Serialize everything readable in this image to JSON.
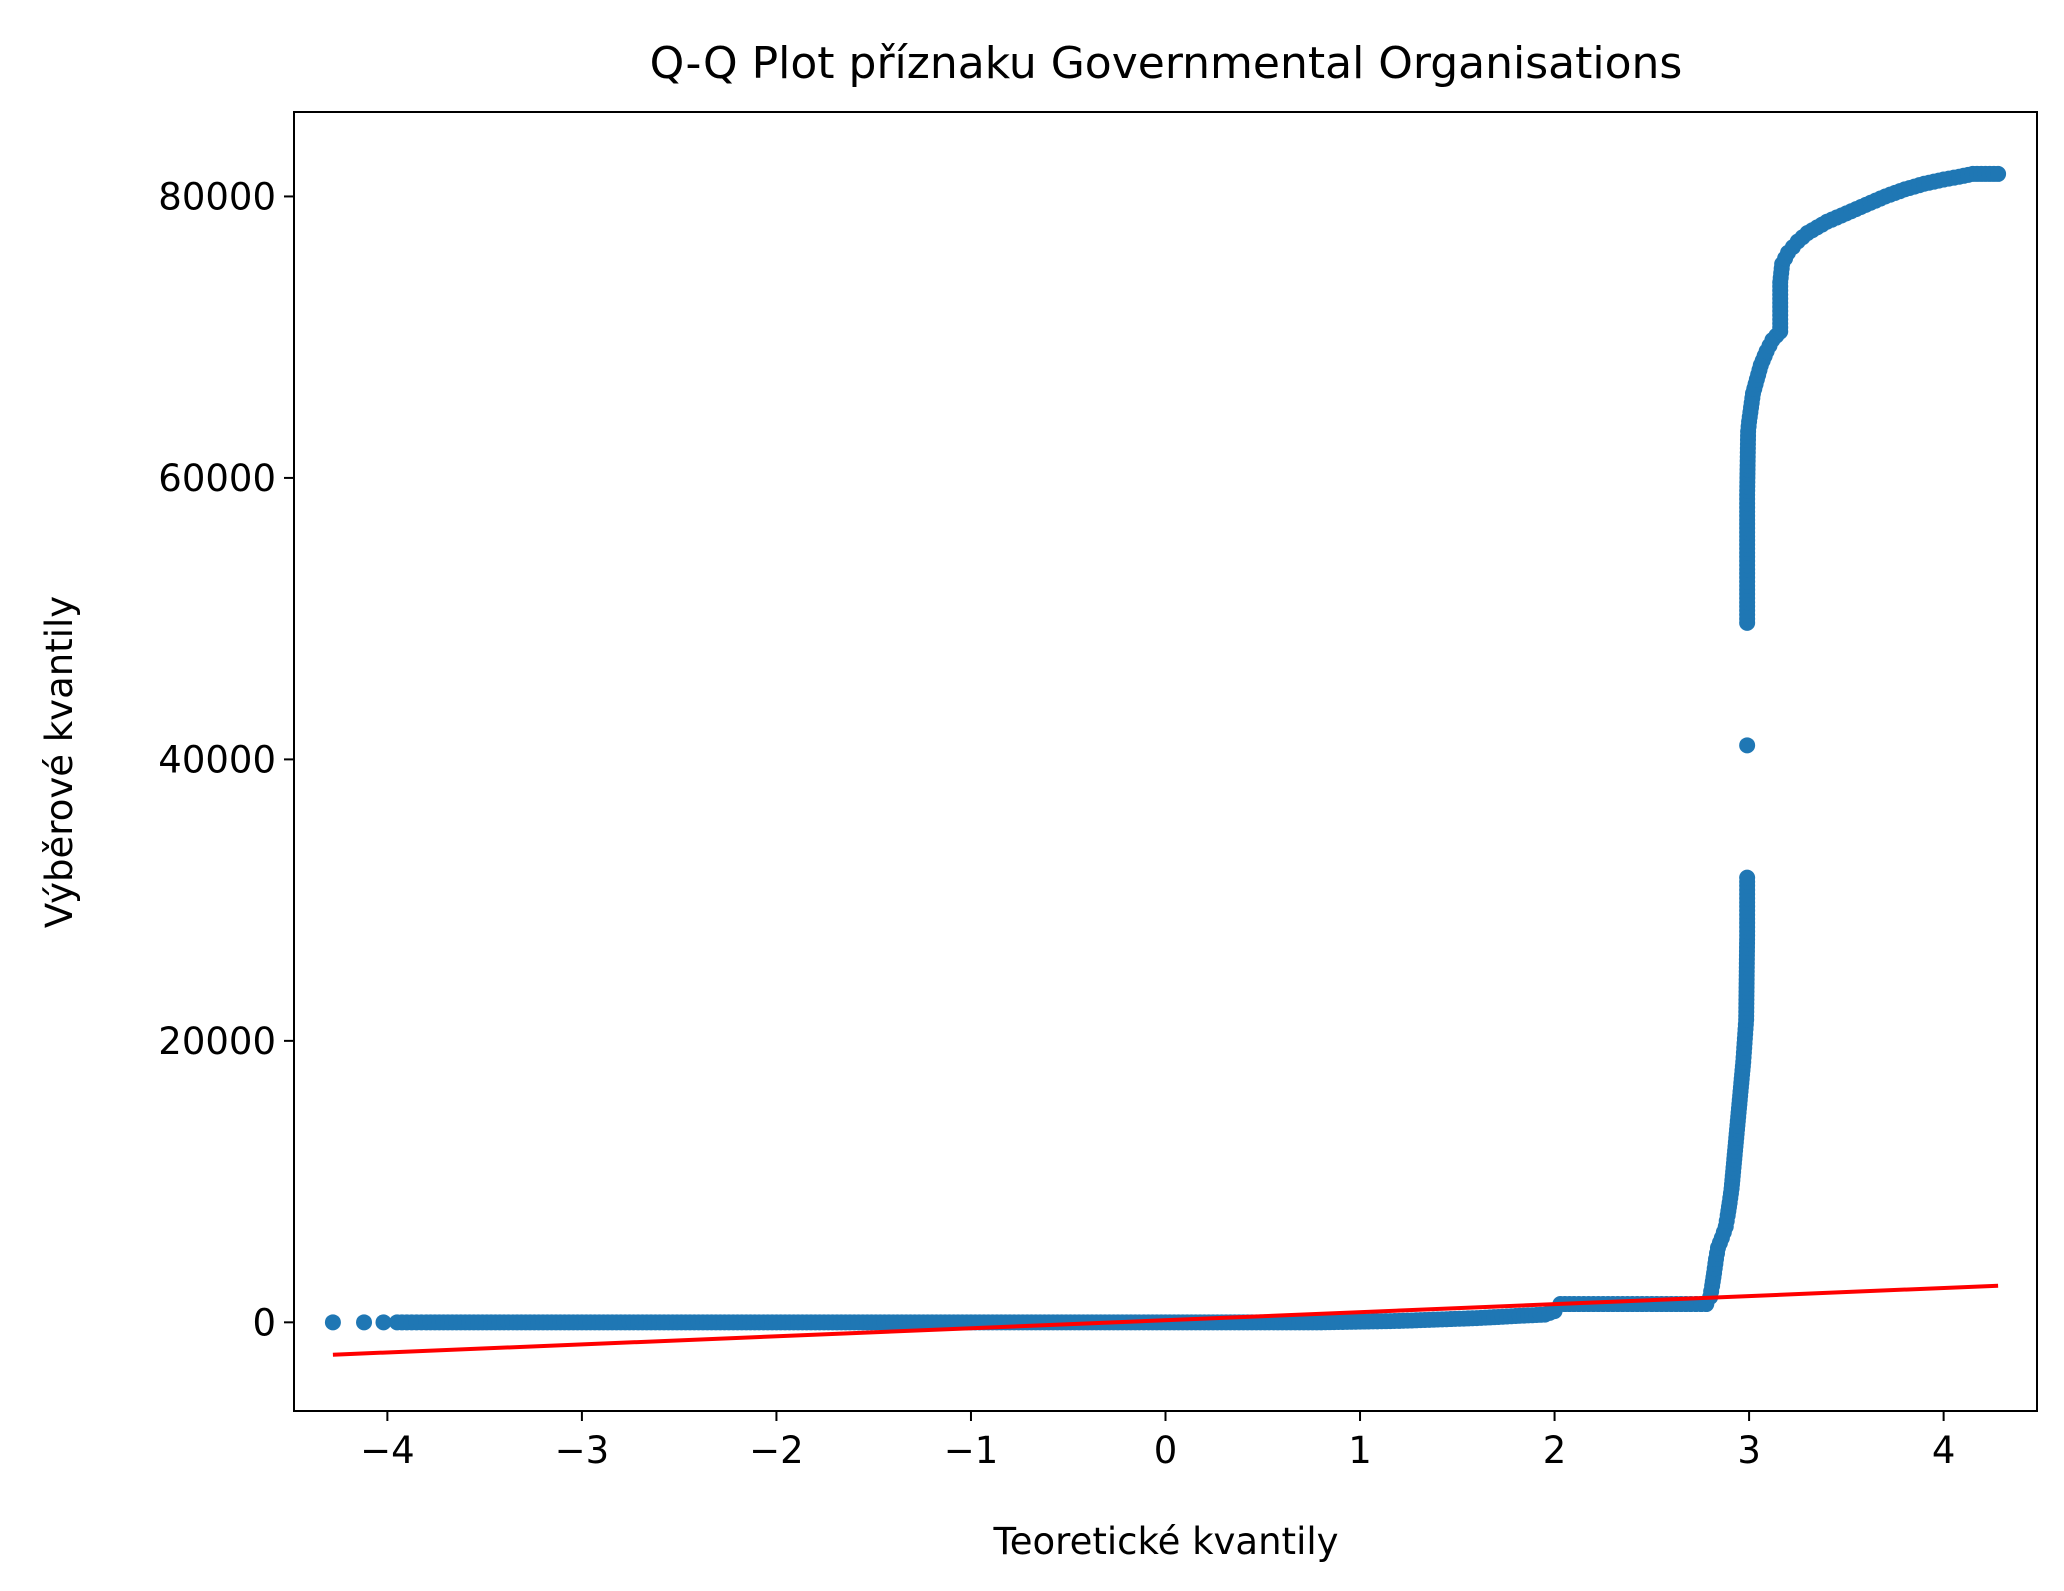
{
  "chart_data": {
    "type": "scatter",
    "title": "Q-Q Plot příznaku Governmental Organisations",
    "xlabel": "Teoretické kvantily",
    "ylabel": "Výběrové kvantily",
    "xlim": [
      -4.48,
      4.48
    ],
    "ylim": [
      -6300,
      86000
    ],
    "x_ticks": [
      {
        "value": -4,
        "label": "−4"
      },
      {
        "value": -3,
        "label": "−3"
      },
      {
        "value": -2,
        "label": "−2"
      },
      {
        "value": -1,
        "label": "−1"
      },
      {
        "value": 0,
        "label": "0"
      },
      {
        "value": 1,
        "label": "1"
      },
      {
        "value": 2,
        "label": "2"
      },
      {
        "value": 3,
        "label": "3"
      },
      {
        "value": 4,
        "label": "4"
      }
    ],
    "y_ticks": [
      {
        "value": 0,
        "label": "0"
      },
      {
        "value": 20000,
        "label": "20000"
      },
      {
        "value": 40000,
        "label": "40000"
      },
      {
        "value": 60000,
        "label": "60000"
      },
      {
        "value": 80000,
        "label": "80000"
      }
    ],
    "grid": false,
    "marker_color": "#1f77b4",
    "line_color": "#ff0000",
    "series": [
      {
        "kind": "points",
        "points": [
          [
            -4.28,
            0
          ],
          [
            -4.12,
            0
          ],
          [
            -4.02,
            0
          ],
          [
            -3.95,
            0
          ],
          [
            -3.9,
            0
          ],
          [
            -3.8,
            0
          ],
          [
            -3.6,
            0
          ],
          [
            -3.4,
            0
          ],
          [
            -3.2,
            0
          ],
          [
            -3.0,
            0
          ],
          [
            -2.8,
            0
          ],
          [
            -2.6,
            0
          ],
          [
            -2.4,
            0
          ],
          [
            -2.2,
            0
          ],
          [
            -2.0,
            0
          ],
          [
            -1.8,
            0
          ],
          [
            -1.6,
            0
          ],
          [
            -1.4,
            0
          ],
          [
            -1.2,
            0
          ],
          [
            -1.0,
            0
          ],
          [
            -0.8,
            0
          ],
          [
            -0.6,
            0
          ],
          [
            -0.4,
            0
          ],
          [
            -0.2,
            0
          ],
          [
            0.0,
            0
          ],
          [
            0.2,
            0
          ],
          [
            0.4,
            0
          ],
          [
            0.6,
            0
          ],
          [
            0.8,
            0
          ],
          [
            1.0,
            50
          ],
          [
            1.2,
            100
          ],
          [
            1.4,
            200
          ],
          [
            1.6,
            300
          ],
          [
            1.8,
            450
          ],
          [
            1.95,
            550
          ],
          [
            2.0,
            800
          ],
          [
            2.03,
            1300
          ],
          [
            2.1,
            1300
          ],
          [
            2.2,
            1300
          ],
          [
            2.3,
            1300
          ],
          [
            2.4,
            1300
          ],
          [
            2.5,
            1300
          ],
          [
            2.6,
            1300
          ],
          [
            2.7,
            1300
          ],
          [
            2.78,
            1300
          ],
          [
            2.8,
            1800
          ],
          [
            2.81,
            2600
          ],
          [
            2.82,
            3500
          ],
          [
            2.83,
            4500
          ],
          [
            2.84,
            5300
          ],
          [
            2.86,
            6000
          ],
          [
            2.88,
            6800
          ],
          [
            2.89,
            7600
          ],
          [
            2.9,
            8500
          ],
          [
            2.91,
            9500
          ],
          [
            2.92,
            11000
          ],
          [
            2.93,
            12500
          ],
          [
            2.94,
            14000
          ],
          [
            2.95,
            15500
          ],
          [
            2.96,
            17000
          ],
          [
            2.97,
            18500
          ],
          [
            2.975,
            19500
          ],
          [
            2.98,
            20500
          ],
          [
            2.985,
            21500
          ],
          [
            2.99,
            27500
          ],
          [
            2.99,
            31600
          ],
          [
            2.99,
            41000
          ],
          [
            2.99,
            49700
          ],
          [
            2.99,
            57900
          ],
          [
            2.99,
            58800
          ],
          [
            2.995,
            63300
          ],
          [
            3.0,
            64000
          ],
          [
            3.01,
            65000
          ],
          [
            3.02,
            66000
          ],
          [
            3.04,
            67000
          ],
          [
            3.06,
            68000
          ],
          [
            3.09,
            69000
          ],
          [
            3.12,
            69800
          ],
          [
            3.16,
            70400
          ],
          [
            3.16,
            73900
          ],
          [
            3.17,
            75200
          ],
          [
            3.2,
            76000
          ],
          [
            3.25,
            76800
          ],
          [
            3.3,
            77400
          ],
          [
            3.4,
            78200
          ],
          [
            3.5,
            78800
          ],
          [
            3.6,
            79400
          ],
          [
            3.7,
            80000
          ],
          [
            3.8,
            80500
          ],
          [
            3.9,
            80900
          ],
          [
            4.0,
            81200
          ],
          [
            4.08,
            81400
          ],
          [
            4.15,
            81600
          ],
          [
            4.28,
            81600
          ]
        ]
      },
      {
        "kind": "fit_line",
        "from": [
          -4.28,
          -2300
        ],
        "to": [
          4.28,
          2600
        ]
      }
    ]
  }
}
